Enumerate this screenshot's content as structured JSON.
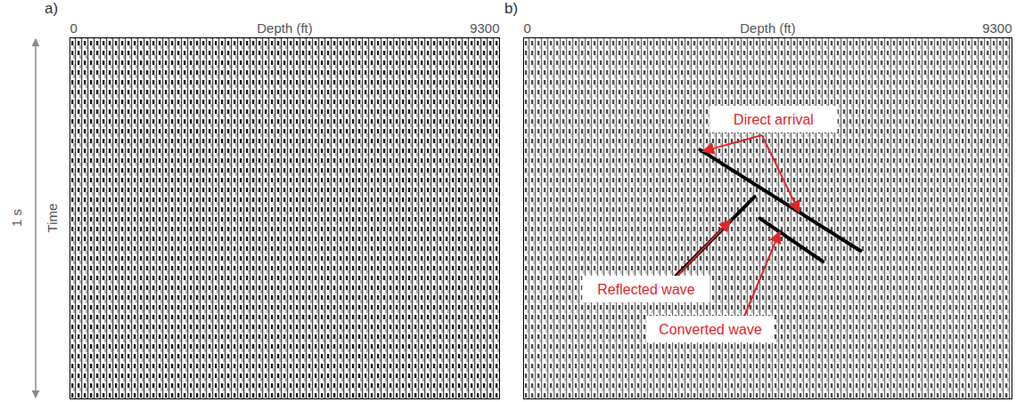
{
  "chart_data": [
    {
      "type": "seismic",
      "panel": "a)",
      "xlabel": "Depth (ft)",
      "xlim": [
        0,
        9300
      ],
      "xticks": [
        0,
        9300
      ],
      "ylim": [
        0,
        1
      ],
      "ylabel": "Time",
      "ylim_label": "1 s",
      "tick_labels": "x"
    },
    {
      "type": "seismic",
      "panel": "b)",
      "xlabel": "Depth (ft)",
      "xlim": [
        0,
        9300
      ],
      "xticks": [
        0,
        9300
      ],
      "ylim": [
        0,
        1
      ],
      "tick_labels": "x",
      "series": [
        {
          "name": "Direct arrival",
          "color": "#000000",
          "x": [
            3360,
            6415
          ],
          "y": [
            0.31,
            0.59
          ]
        },
        {
          "name": "Reflected wave",
          "color": "#000000",
          "x": [
            4400,
            2900
          ],
          "y": [
            0.44,
            0.66
          ]
        },
        {
          "name": "Converted wave",
          "color": "#000000",
          "x": [
            4500,
            5700
          ],
          "y": [
            0.5,
            0.62
          ]
        }
      ],
      "annotations": [
        {
          "text": "Direct arrival",
          "color": "#e0262b",
          "target": "Direct arrival"
        },
        {
          "text": "Reflected wave",
          "color": "#e0262b",
          "target": "Reflected wave"
        },
        {
          "text": "Converted wave",
          "color": "#e0262b",
          "target": "Converted wave"
        }
      ]
    }
  ]
}
